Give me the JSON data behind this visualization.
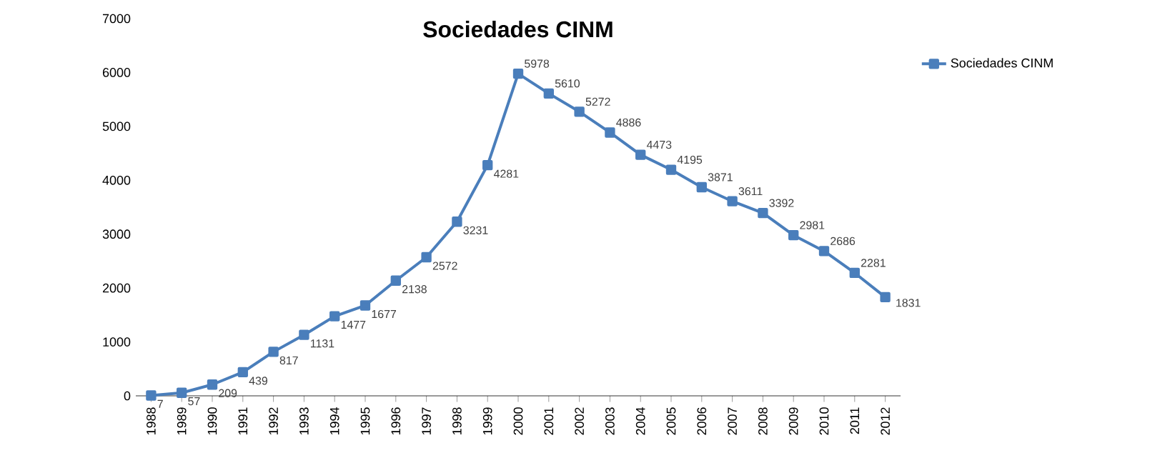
{
  "chart_data": {
    "type": "line",
    "title": "Sociedades CINM",
    "categories": [
      "1988",
      "1989",
      "1990",
      "1991",
      "1992",
      "1993",
      "1994",
      "1995",
      "1996",
      "1997",
      "1998",
      "1999",
      "2000",
      "2001",
      "2002",
      "2003",
      "2004",
      "2005",
      "2006",
      "2007",
      "2008",
      "2009",
      "2010",
      "2011",
      "2012"
    ],
    "series": [
      {
        "name": "Sociedades CINM",
        "color": "#4a7ebb",
        "values": [
          7,
          57,
          209,
          439,
          817,
          1131,
          1477,
          1677,
          2138,
          2572,
          3231,
          4281,
          5978,
          5610,
          5272,
          4886,
          4473,
          4195,
          3871,
          3611,
          3392,
          2981,
          2686,
          2281,
          1831
        ]
      }
    ],
    "ylim": [
      0,
      7000
    ],
    "yticks": [
      0,
      1000,
      2000,
      3000,
      4000,
      5000,
      6000,
      7000
    ],
    "data_labels": true,
    "legend": "top right",
    "marker": "square",
    "line_style": "solid",
    "grid": false
  }
}
